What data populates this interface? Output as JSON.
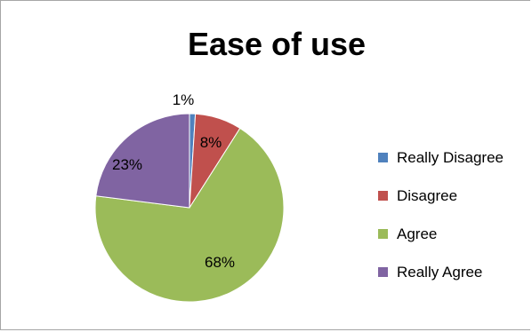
{
  "chart_data": {
    "type": "pie",
    "title": "Ease of use",
    "categories": [
      "Really Disagree",
      "Disagree",
      "Agree",
      "Really Agree"
    ],
    "values": [
      1,
      8,
      68,
      23
    ],
    "labels": [
      "1%",
      "8%",
      "68%",
      "23%"
    ],
    "colors": [
      "#4f81bd",
      "#c0504d",
      "#9bbb59",
      "#8064a2"
    ],
    "legend": "right"
  }
}
